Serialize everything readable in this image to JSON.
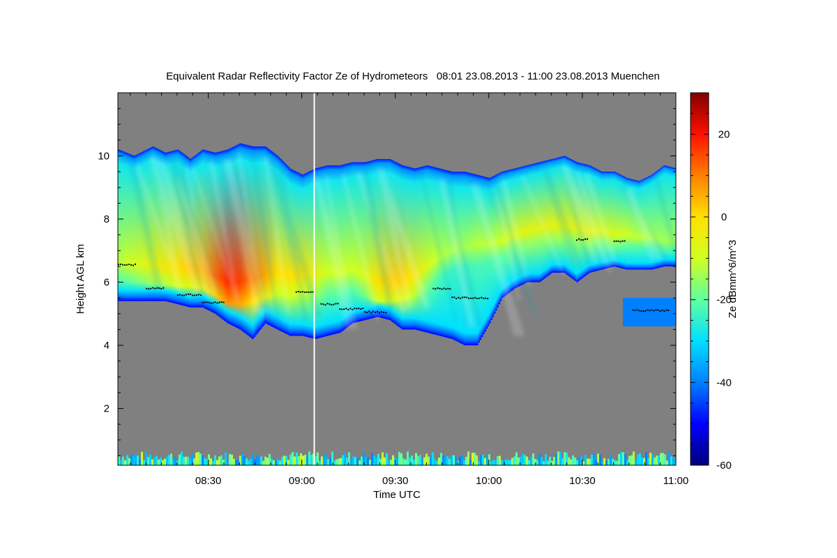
{
  "chart_data": {
    "type": "heatmap",
    "title": "Equivalent Radar Reflectivity Factor Ze of Hydrometeors   08:01 23.08.2013 - 11:00 23.08.2013 Muenchen",
    "xlabel": "Time UTC",
    "ylabel": "Height AGL km",
    "xlim_minutes_utc": [
      481,
      660
    ],
    "ylim_km": [
      0.2,
      12.0
    ],
    "x_ticks": [
      {
        "value": 510,
        "label": "08:30"
      },
      {
        "value": 540,
        "label": "09:00"
      },
      {
        "value": 570,
        "label": "09:30"
      },
      {
        "value": 600,
        "label": "10:00"
      },
      {
        "value": 630,
        "label": "10:30"
      },
      {
        "value": 660,
        "label": "11:00"
      }
    ],
    "y_ticks": [
      {
        "value": 2,
        "label": "2"
      },
      {
        "value": 4,
        "label": "4"
      },
      {
        "value": 6,
        "label": "6"
      },
      {
        "value": 8,
        "label": "8"
      },
      {
        "value": 10,
        "label": "10"
      }
    ],
    "colorbar": {
      "label": "Ze dBmm^6/m^3",
      "range": [
        -60,
        30
      ],
      "ticks": [
        {
          "value": -60,
          "label": "-60"
        },
        {
          "value": -40,
          "label": "-40"
        },
        {
          "value": -20,
          "label": "-20"
        },
        {
          "value": 0,
          "label": "0"
        },
        {
          "value": 20,
          "label": "20"
        }
      ],
      "colors": [
        "#00007a",
        "#0000ff",
        "#0080ff",
        "#00e0ff",
        "#60ffa0",
        "#d0ff20",
        "#ffe000",
        "#ff8000",
        "#ff1000",
        "#800000"
      ]
    },
    "background_color": "#808080",
    "marker_line_time_minutes": 544,
    "cloud": {
      "time_minutes": [
        481,
        486,
        492,
        496,
        500,
        504,
        508,
        512,
        516,
        520,
        524,
        528,
        532,
        536,
        540,
        544,
        548,
        552,
        556,
        560,
        564,
        568,
        572,
        576,
        580,
        584,
        588,
        592,
        596,
        600,
        604,
        608,
        612,
        616,
        620,
        624,
        628,
        632,
        636,
        640,
        644,
        648,
        652,
        656,
        660
      ],
      "top_km": [
        10.2,
        10.0,
        10.3,
        10.1,
        10.2,
        9.9,
        10.2,
        10.1,
        10.2,
        10.4,
        10.3,
        10.3,
        10.0,
        9.6,
        9.4,
        9.6,
        9.7,
        9.7,
        9.8,
        9.8,
        9.9,
        9.9,
        9.7,
        9.6,
        9.7,
        9.6,
        9.5,
        9.5,
        9.4,
        9.3,
        9.5,
        9.6,
        9.7,
        9.8,
        9.9,
        10.0,
        9.8,
        9.7,
        9.5,
        9.5,
        9.3,
        9.2,
        9.4,
        9.7,
        9.6
      ],
      "base_km": [
        5.4,
        5.4,
        5.4,
        5.4,
        5.3,
        5.2,
        5.2,
        5.0,
        4.7,
        4.5,
        4.2,
        4.7,
        4.5,
        4.3,
        4.3,
        4.2,
        4.3,
        4.4,
        4.7,
        4.8,
        4.9,
        4.8,
        4.5,
        4.5,
        4.4,
        4.3,
        4.2,
        4.0,
        4.0,
        4.7,
        5.5,
        5.8,
        6.0,
        6.0,
        6.3,
        6.3,
        6.0,
        6.3,
        6.4,
        6.5,
        6.4,
        6.4,
        6.4,
        6.5,
        6.5
      ]
    },
    "core": {
      "time_minutes": [
        508,
        512,
        516,
        520,
        524,
        528,
        532,
        536,
        540,
        544,
        548,
        552,
        556,
        560,
        564,
        568,
        572,
        576,
        580,
        584,
        588,
        592,
        596,
        600,
        604,
        608,
        612,
        616,
        620,
        624,
        628,
        632,
        636,
        640,
        644,
        648,
        652,
        656,
        660
      ],
      "center_km": [
        6.4,
        6.2,
        6.0,
        6.0,
        6.1,
        6.2,
        6.3,
        6.2,
        6.3,
        6.2,
        6.3,
        6.3,
        6.4,
        6.2,
        6.0,
        6.0,
        6.1,
        6.2,
        6.5,
        6.8,
        7.0,
        7.1,
        7.2,
        7.2,
        7.3,
        7.5,
        7.6,
        7.7,
        7.8,
        7.8,
        7.7,
        7.6,
        7.6,
        7.5,
        7.5,
        7.4,
        7.4,
        7.3,
        7.3
      ],
      "peak_dbz": [
        5,
        12,
        18,
        16,
        10,
        6,
        0,
        0,
        0,
        -5,
        -10,
        -10,
        -10,
        -8,
        0,
        2,
        2,
        -2,
        -8,
        -12,
        -14,
        -14,
        -12,
        -12,
        -10,
        -8,
        -6,
        -6,
        -5,
        -5,
        -6,
        -6,
        -8,
        -8,
        -10,
        -12,
        -14,
        -14,
        -14
      ]
    },
    "lower_layer": {
      "time_minutes": [
        643,
        660
      ],
      "top_km": 5.5,
      "base_km": 4.6,
      "dbz": -40
    },
    "near_surface_clutter": {
      "top_km": 0.6,
      "dbz_range": [
        -40,
        -10
      ]
    },
    "black_markers": [
      {
        "time_minutes": [
          481,
          487
        ],
        "height_km": 6.55
      },
      {
        "time_minutes": [
          490,
          496
        ],
        "height_km": 5.8
      },
      {
        "time_minutes": [
          500,
          508
        ],
        "height_km": 5.6
      },
      {
        "time_minutes": [
          508,
          515
        ],
        "height_km": 5.35
      },
      {
        "time_minutes": [
          538,
          544
        ],
        "height_km": 5.7
      },
      {
        "time_minutes": [
          546,
          552
        ],
        "height_km": 5.3
      },
      {
        "time_minutes": [
          552,
          560
        ],
        "height_km": 5.15
      },
      {
        "time_minutes": [
          560,
          567
        ],
        "height_km": 5.05
      },
      {
        "time_minutes": [
          582,
          588
        ],
        "height_km": 5.8
      },
      {
        "time_minutes": [
          588,
          600
        ],
        "height_km": 5.5
      },
      {
        "time_minutes": [
          628,
          632
        ],
        "height_km": 7.35
      },
      {
        "time_minutes": [
          640,
          644
        ],
        "height_km": 7.3
      },
      {
        "time_minutes": [
          646,
          658
        ],
        "height_km": 5.1
      }
    ]
  }
}
